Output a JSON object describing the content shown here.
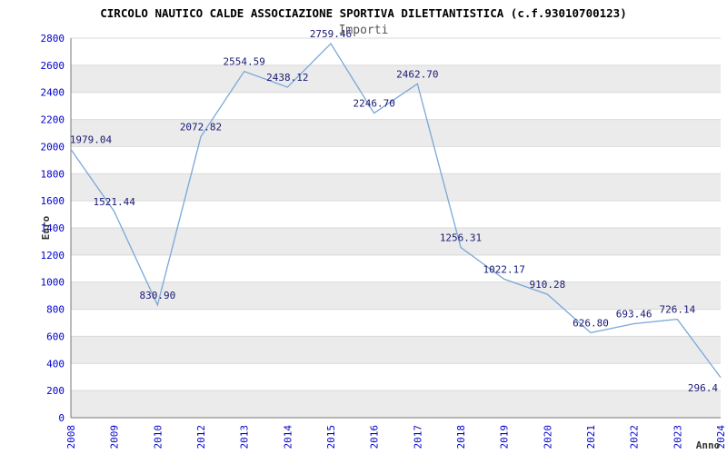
{
  "header": {
    "title": "CIRCOLO NAUTICO CALDE ASSOCIAZIONE SPORTIVA DILETTANTISTICA (c.f.93010700123)",
    "subtitle": "Importi"
  },
  "chart_data": {
    "type": "line",
    "title": "CIRCOLO NAUTICO CALDE ASSOCIAZIONE SPORTIVA DILETTANTISTICA (c.f.93010700123)",
    "subtitle": "Importi",
    "xlabel": "Anno",
    "ylabel": "Euro",
    "categories": [
      "2008",
      "2009",
      "2010",
      "2012",
      "2013",
      "2014",
      "2015",
      "2016",
      "2017",
      "2018",
      "2019",
      "2020",
      "2021",
      "2022",
      "2023",
      "2024"
    ],
    "values": [
      1979.04,
      1521.44,
      830.9,
      2072.82,
      2554.59,
      2438.12,
      2759.46,
      2246.7,
      2462.7,
      1256.31,
      1022.17,
      910.28,
      626.8,
      693.46,
      726.14,
      296.4
    ],
    "point_labels": [
      "1979.04",
      "1521.44",
      "830.90",
      "2072.82",
      "2554.59",
      "2438.12",
      "2759.46",
      "2246.70",
      "2462.70",
      "1256.31",
      "1022.17",
      "910.28",
      "626.80",
      "693.46",
      "726.14",
      "296.4"
    ],
    "ylim": [
      0,
      2800
    ],
    "ytick_step": 200,
    "grid": true,
    "legend": "none",
    "colors": {
      "line": "#79a8d9",
      "point_label": "#181875",
      "tick_label": "#0000cc",
      "axis": "#777777",
      "grid_line": "#d9d9d9",
      "band": "#ebebeb",
      "band_alt": "#ffffff",
      "axis_title": "#333333",
      "title": "#000000",
      "subtitle": "#555555"
    }
  }
}
